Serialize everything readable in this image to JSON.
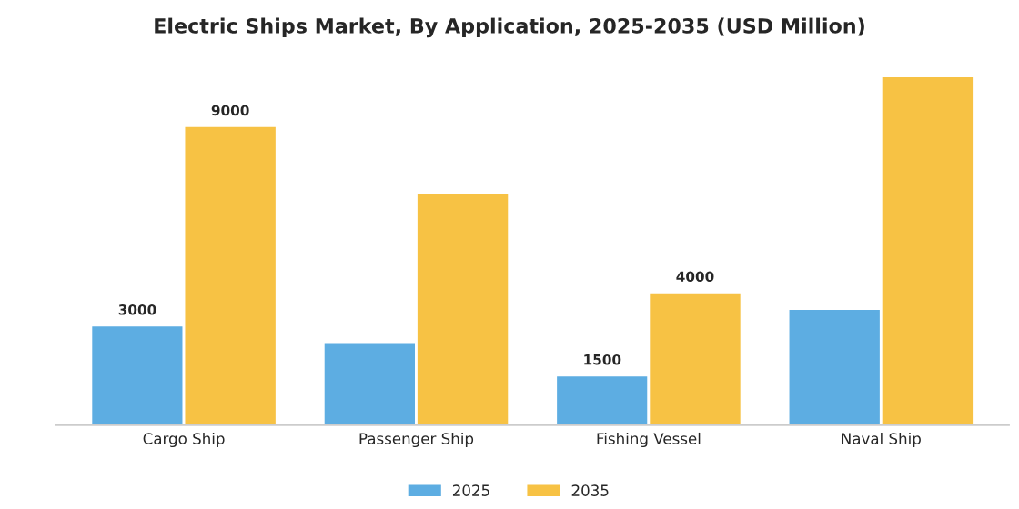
{
  "chart_data": {
    "type": "bar",
    "title": "Electric Ships Market, By Application, 2025-2035 (USD Million)",
    "categories": [
      "Cargo Ship",
      "Passenger Ship",
      "Fishing Vessel",
      "Naval Ship"
    ],
    "series": [
      {
        "name": "2025",
        "color": "#5dade2",
        "values": [
          3000,
          2500,
          1500,
          3500
        ],
        "value_labels": [
          "3000",
          null,
          "1500",
          null
        ]
      },
      {
        "name": "2035",
        "color": "#f7c244",
        "values": [
          9000,
          7000,
          4000,
          10500
        ],
        "value_labels": [
          "9000",
          null,
          "4000",
          null
        ]
      }
    ],
    "tick_labels": "x",
    "grid": false,
    "legend": "bottom"
  }
}
